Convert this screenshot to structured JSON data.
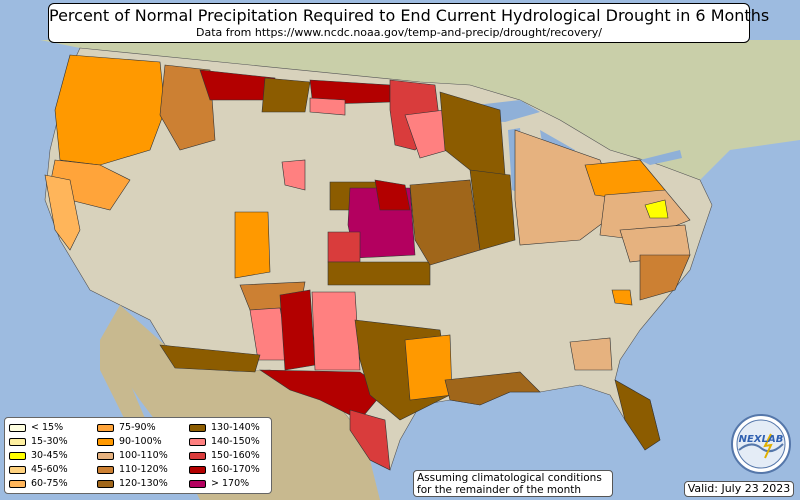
{
  "title": "Percent of Normal Precipitation Required to End Current Hydrological Drought in 6 Months",
  "subtitle": "Data from https://www.ncdc.noaa.gov/temp-and-precip/drought/recovery/",
  "legend": [
    {
      "label": "< 15%",
      "color": "#ffffe0"
    },
    {
      "label": "15-30%",
      "color": "#fff0a0"
    },
    {
      "label": "30-45%",
      "color": "#ffff00"
    },
    {
      "label": "45-60%",
      "color": "#ffd27f"
    },
    {
      "label": "60-75%",
      "color": "#ffb55a"
    },
    {
      "label": "75-90%",
      "color": "#ffa43a"
    },
    {
      "label": "90-100%",
      "color": "#ff9900"
    },
    {
      "label": "100-110%",
      "color": "#e6b27f"
    },
    {
      "label": "110-120%",
      "color": "#cc8033"
    },
    {
      "label": "120-130%",
      "color": "#a0661a"
    },
    {
      "label": "130-140%",
      "color": "#8c5c00"
    },
    {
      "label": "140-150%",
      "color": "#ff8080"
    },
    {
      "label": "150-160%",
      "color": "#d93c3c"
    },
    {
      "label": "160-170%",
      "color": "#b30000"
    },
    {
      "label": "> 170%",
      "color": "#b3005f"
    }
  ],
  "note": [
    "Assuming climatological conditions",
    "for the remainder of the month"
  ],
  "valid": "Valid: July 23 2023",
  "logo_text": "NEXLAB",
  "colors": {
    "ocean": "#9dbbe0",
    "land": "#d8d2bc",
    "canada": "#c9cfa9",
    "mexico": "#c8b98f",
    "lakes": "#8fb0d8"
  }
}
